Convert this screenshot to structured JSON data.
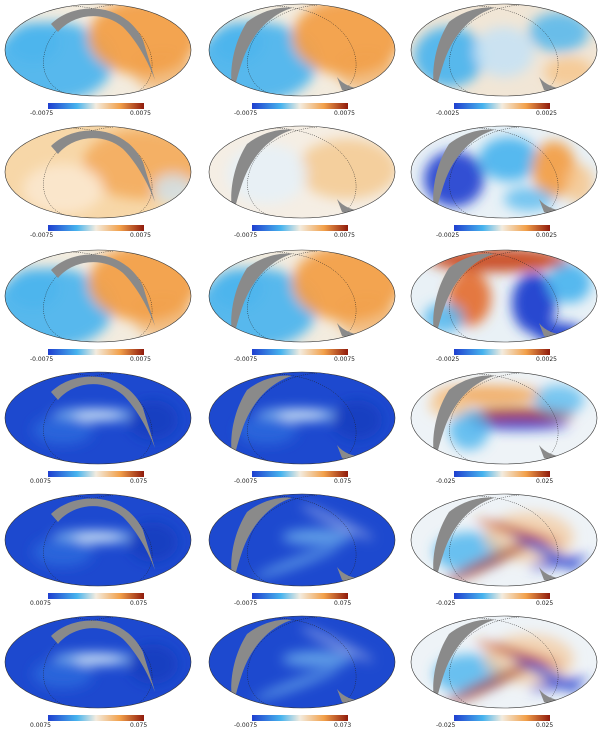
{
  "colors": {
    "cold": "#1f3fcf",
    "cool": "#47b3ee",
    "neutral": "#f3ecdf",
    "warm": "#f2a04a",
    "hot": "#8f1a0c",
    "mask": "#8a8a8a",
    "outline": "#333333"
  },
  "rows": [
    {
      "cells": [
        {
          "min": "-0.0075",
          "max": "0.0075",
          "style": "dipole"
        },
        {
          "min": "-0.0075",
          "max": "0.0075",
          "style": "dipole"
        },
        {
          "min": "-0.0025",
          "max": "0.0025",
          "style": "quad"
        }
      ]
    },
    {
      "cells": [
        {
          "min": "-0.0075",
          "max": "0.0075",
          "style": "warm"
        },
        {
          "min": "-0.0075",
          "max": "0.0075",
          "style": "pale"
        },
        {
          "min": "-0.0025",
          "max": "0.0025",
          "style": "quad2"
        }
      ]
    },
    {
      "cells": [
        {
          "min": "-0.0075",
          "max": "0.0075",
          "style": "dipole"
        },
        {
          "min": "-0.0075",
          "max": "0.0075",
          "style": "dipole"
        },
        {
          "min": "-0.0025",
          "max": "0.0025",
          "style": "quad3"
        }
      ]
    },
    {
      "cells": [
        {
          "min": "0.0075",
          "max": "0.075",
          "style": "bluefield"
        },
        {
          "min": "-0.0075",
          "max": "0.075",
          "style": "bluefield"
        },
        {
          "min": "-0.025",
          "max": "0.025",
          "style": "bands"
        }
      ]
    },
    {
      "cells": [
        {
          "min": "0.0075",
          "max": "0.075",
          "style": "bluefield"
        },
        {
          "min": "-0.0075",
          "max": "0.075",
          "style": "bluestreaks"
        },
        {
          "min": "-0.025",
          "max": "0.025",
          "style": "streaks"
        }
      ]
    },
    {
      "cells": [
        {
          "min": "0.0075",
          "max": "0.075",
          "style": "bluefield"
        },
        {
          "min": "-0.0075",
          "max": "0.073",
          "style": "bluestreaks"
        },
        {
          "min": "-0.025",
          "max": "0.025",
          "style": "streaks"
        }
      ]
    }
  ]
}
